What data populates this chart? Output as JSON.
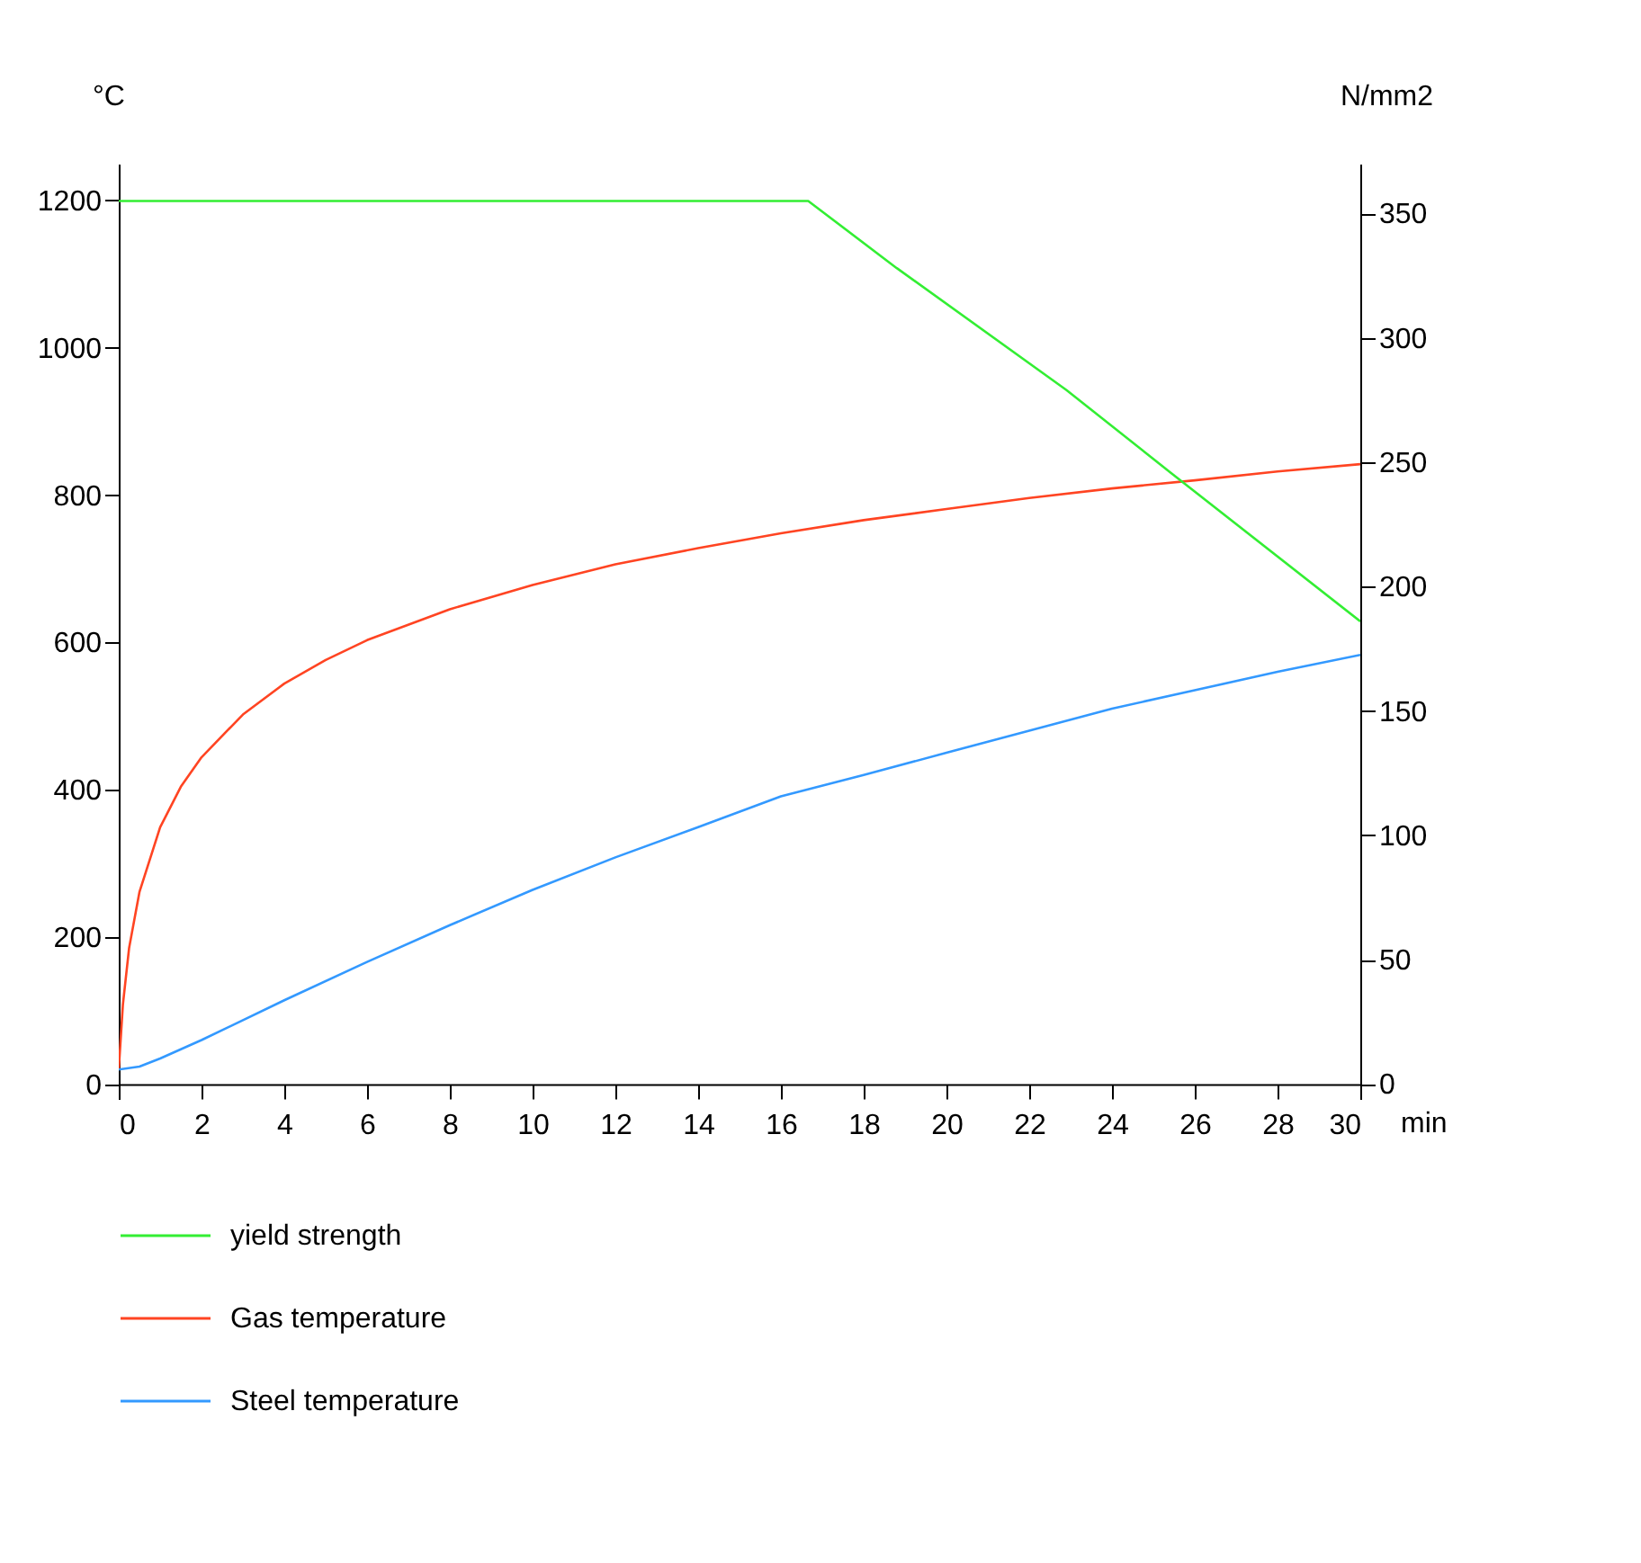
{
  "chart_data": {
    "type": "line",
    "xlabel": "min",
    "ylabel": "°C",
    "y2label": "N/mm2",
    "xlim": [
      0,
      30
    ],
    "xticks": [
      0,
      2,
      4,
      6,
      8,
      10,
      12,
      14,
      16,
      18,
      20,
      22,
      24,
      26,
      28,
      30
    ],
    "ylim": [
      -20,
      1250
    ],
    "yticks": [
      0,
      200,
      400,
      600,
      800,
      1000,
      1200
    ],
    "y2lim": [
      -6,
      370
    ],
    "y2ticks": [
      0,
      50,
      100,
      150,
      200,
      250,
      300,
      350
    ],
    "grid": false,
    "legend": "bottom left",
    "series": [
      {
        "name": "yield strength",
        "color": "#33ee33",
        "axis": "y2",
        "x": [
          0,
          16.66,
          18.8,
          22.9,
          25.4,
          30
        ],
        "values": [
          355,
          355,
          328,
          279,
          246,
          186
        ]
      },
      {
        "name": "Gas temperature",
        "color": "#ff4422",
        "x": [
          0,
          0.1,
          0.25,
          0.5,
          1,
          1.5,
          2,
          3,
          4,
          5,
          6,
          8,
          10,
          12,
          14,
          16,
          18,
          20,
          22,
          24,
          26,
          28,
          30
        ],
        "values": [
          20,
          108,
          185,
          261,
          349,
          404,
          444,
          502,
          544,
          576,
          603,
          645,
          678,
          706,
          728,
          748,
          766,
          781,
          796,
          809,
          820,
          832,
          842
        ]
      },
      {
        "name": "Steel temperature",
        "color": "#3399ff",
        "x": [
          0,
          0.5,
          1,
          2,
          4,
          6,
          8,
          10,
          12,
          14,
          16,
          18,
          20,
          22,
          24,
          26,
          28,
          30
        ],
        "values": [
          20,
          24,
          35,
          60,
          114,
          166,
          216,
          264,
          308,
          349,
          391,
          420,
          450,
          480,
          510,
          535,
          560,
          583
        ]
      }
    ]
  }
}
